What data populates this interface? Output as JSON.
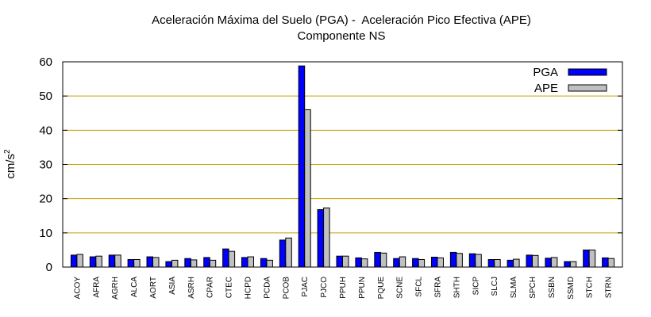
{
  "chart_data": {
    "type": "bar",
    "title": "Aceleración Máxima del Suelo (PGA) -  Aceleración Pico Efectiva (APE)",
    "subtitle": "Componente NS",
    "ylabel": "cm/s²",
    "ylabel_base": "cm/s",
    "ylabel_sup": "2",
    "xlabel": "",
    "ylim": [
      0,
      60
    ],
    "yticks": [
      0,
      10,
      20,
      30,
      40,
      50,
      60
    ],
    "grid": true,
    "legend_position": "top-right",
    "categories": [
      "ACOY",
      "AFRA",
      "AGRH",
      "ALCA",
      "AORT",
      "ASIA",
      "ASRH",
      "CPAR",
      "CTEC",
      "HCPD",
      "PCDA",
      "PCOB",
      "PJAC",
      "PJCO",
      "PPUH",
      "PPUN",
      "PQUE",
      "SCNE",
      "SFCL",
      "SFRA",
      "SHTH",
      "SICP",
      "SLCJ",
      "SLMA",
      "SPCH",
      "SSBN",
      "SSMD",
      "STCH",
      "STRN"
    ],
    "series": [
      {
        "name": "PGA",
        "color": "#0000ff",
        "values": [
          3.5,
          3.0,
          3.5,
          2.2,
          3.0,
          1.6,
          2.5,
          2.8,
          5.3,
          2.8,
          2.5,
          7.9,
          58.8,
          16.8,
          3.2,
          2.7,
          4.3,
          2.5,
          2.5,
          2.9,
          4.3,
          3.9,
          2.2,
          2.0,
          3.5,
          2.6,
          1.6,
          5.0,
          2.7
        ]
      },
      {
        "name": "APE",
        "color": "#c0c0c0",
        "values": [
          3.7,
          3.2,
          3.5,
          2.2,
          2.8,
          2.0,
          2.1,
          2.0,
          4.6,
          3.0,
          2.0,
          8.5,
          46.0,
          17.3,
          3.2,
          2.4,
          4.1,
          3.0,
          2.2,
          2.7,
          4.0,
          3.7,
          2.2,
          2.3,
          3.4,
          2.8,
          1.6,
          5.0,
          2.5
        ]
      }
    ]
  }
}
